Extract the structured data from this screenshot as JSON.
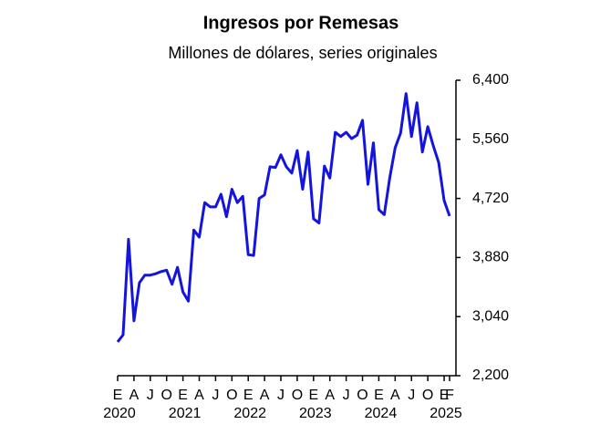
{
  "chart_data": {
    "type": "line",
    "title": "Ingresos por Remesas",
    "subtitle": "Millones de dólares, series originales",
    "categories": [
      "E",
      null,
      null,
      "A",
      null,
      null,
      "J",
      null,
      null,
      "O",
      null,
      null,
      "E",
      null,
      null,
      "A",
      null,
      null,
      "J",
      null,
      null,
      "O",
      null,
      null,
      "E",
      null,
      null,
      "A",
      null,
      null,
      "J",
      null,
      null,
      "O",
      null,
      null,
      "E",
      null,
      null,
      "A",
      null,
      null,
      "J",
      null,
      null,
      "O",
      null,
      null,
      "E",
      null,
      null,
      "A",
      null,
      null,
      "J",
      null,
      null,
      "O",
      null,
      null,
      "E",
      "F"
    ],
    "year_labels": [
      "2020",
      "2021",
      "2022",
      "2023",
      "2024",
      "2025"
    ],
    "series": [
      {
        "color": "#1414dc",
        "values": [
          2680,
          2780,
          4140,
          2980,
          3520,
          3630,
          3630,
          3650,
          3680,
          3700,
          3500,
          3740,
          3390,
          3260,
          4270,
          4170,
          4660,
          4600,
          4600,
          4780,
          4460,
          4850,
          4660,
          4750,
          3920,
          3910,
          4720,
          4770,
          5170,
          5160,
          5340,
          5170,
          5080,
          5400,
          4850,
          5380,
          4430,
          4370,
          5180,
          5010,
          5660,
          5600,
          5660,
          5570,
          5620,
          5830,
          4920,
          5510,
          4560,
          4490,
          5010,
          5440,
          5650,
          6210,
          5600,
          6080,
          5380,
          5740,
          5470,
          5230,
          4690,
          4470
        ]
      }
    ],
    "ylim": [
      2200,
      6400
    ],
    "yticks": [
      {
        "value": 2200,
        "label": "2,200"
      },
      {
        "value": 3040,
        "label": "3,040"
      },
      {
        "value": 3880,
        "label": "3,880"
      },
      {
        "value": 4720,
        "label": "4,720"
      },
      {
        "value": 5560,
        "label": "5,560"
      },
      {
        "value": 6400,
        "label": "6,400"
      }
    ],
    "y_axis_side": "right"
  }
}
